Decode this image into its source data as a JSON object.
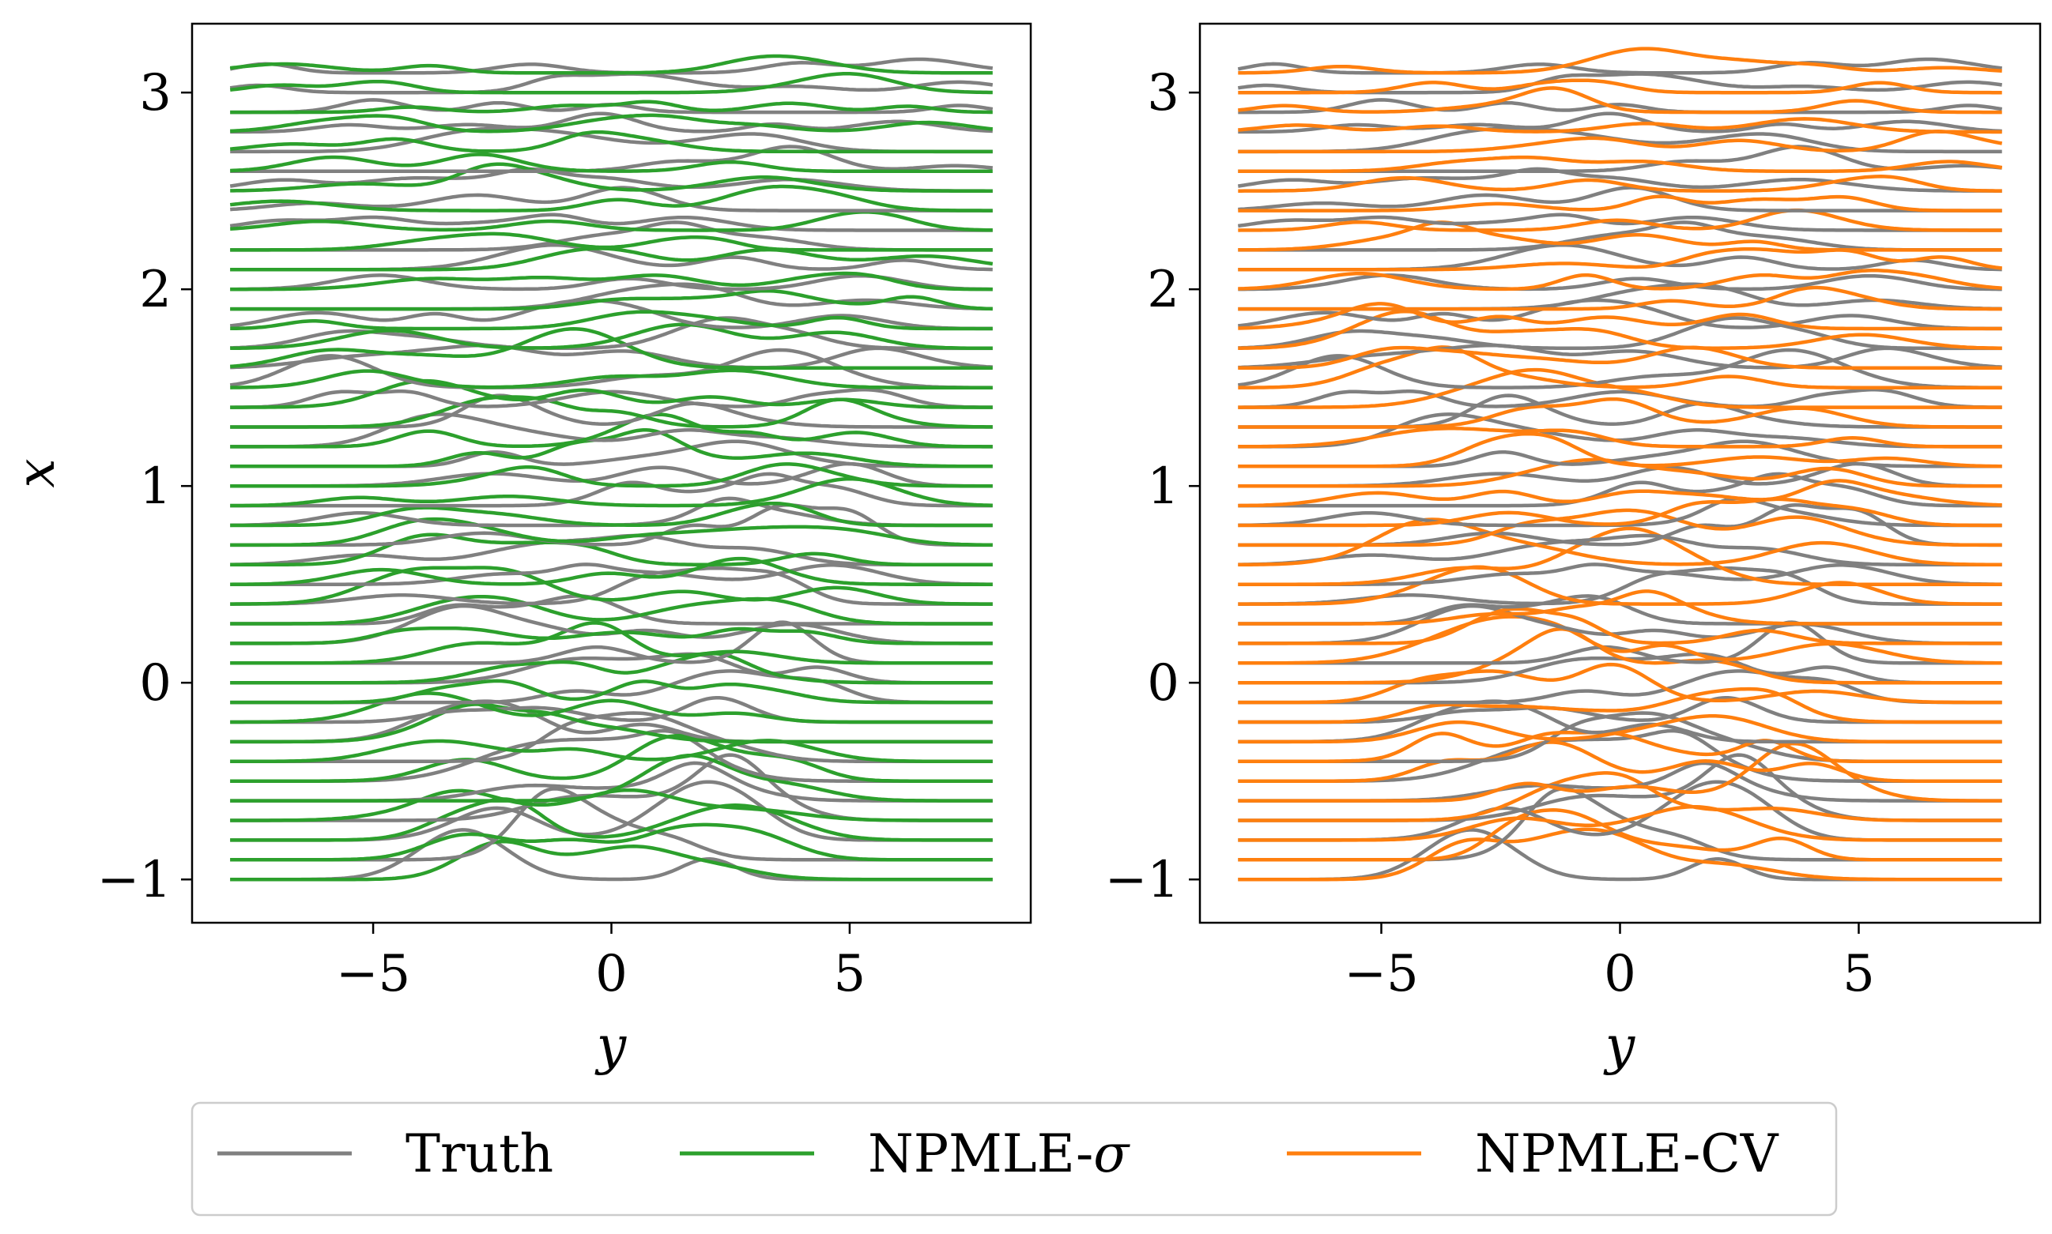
{
  "chart_data": [
    {
      "type": "line",
      "xlabel": "y",
      "ylabel": "x",
      "xlim": [
        -8.8,
        8.8
      ],
      "ylim": [
        -1.22,
        3.35
      ],
      "xticks": [
        -5,
        0,
        5
      ],
      "yticks": [
        -1,
        0,
        1,
        2,
        3
      ],
      "xtick_labels": [
        "−5",
        "0",
        "5"
      ],
      "ytick_labels": [
        "−1",
        "0",
        "1",
        "2",
        "3"
      ],
      "grid": false,
      "series": [
        {
          "name": "Truth",
          "color": "#808080"
        },
        {
          "name": "NPMLE-σ",
          "color": "#2ca02c"
        }
      ],
      "n_curves": 42,
      "y_range": [
        -8,
        8
      ],
      "x_start": -1.0,
      "x_step": 0.1
    },
    {
      "type": "line",
      "xlabel": "y",
      "ylabel": "",
      "xlim": [
        -8.8,
        8.8
      ],
      "ylim": [
        -1.22,
        3.35
      ],
      "xticks": [
        -5,
        0,
        5
      ],
      "yticks": [
        -1,
        0,
        1,
        2,
        3
      ],
      "xtick_labels": [
        "−5",
        "0",
        "5"
      ],
      "ytick_labels": [
        "−1",
        "0",
        "1",
        "2",
        "3"
      ],
      "grid": false,
      "series": [
        {
          "name": "Truth",
          "color": "#808080"
        },
        {
          "name": "NPMLE-CV",
          "color": "#ff7f0e"
        }
      ],
      "n_curves": 42,
      "y_range": [
        -8,
        8
      ],
      "x_start": -1.0,
      "x_step": 0.1
    }
  ],
  "legend": {
    "placement": "bottom-center",
    "items": [
      {
        "label": "Truth",
        "color": "#808080"
      },
      {
        "label_main": "NPMLE-",
        "label_symbol": "σ",
        "color": "#2ca02c"
      },
      {
        "label": "NPMLE-CV",
        "color": "#ff7f0e"
      }
    ]
  }
}
